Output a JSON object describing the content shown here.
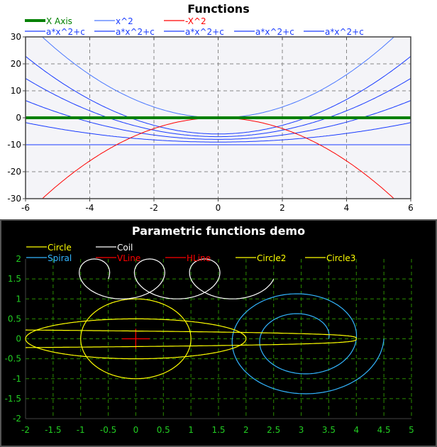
{
  "chart_data": [
    {
      "type": "line",
      "title": "Functions",
      "xlim": [
        -6,
        6
      ],
      "ylim": [
        -30,
        30
      ],
      "xticks": [
        -6,
        -4,
        -2,
        0,
        2,
        4,
        6
      ],
      "yticks": [
        -30,
        -20,
        -10,
        0,
        10,
        20,
        30
      ],
      "grid": true,
      "legend_position": "top",
      "series": [
        {
          "name": "X Axis",
          "kind": "quadratic",
          "a": 0,
          "c": 0,
          "color": "#008000",
          "width": 4
        },
        {
          "name": "x^2",
          "kind": "quadratic",
          "a": 1,
          "c": 0,
          "color": "#4a78ff",
          "width": 1
        },
        {
          "name": "-X^2",
          "kind": "quadratic",
          "a": -1,
          "c": 0,
          "color": "#ff0000",
          "width": 1
        },
        {
          "name": "a*x^2+c",
          "kind": "quadratic",
          "a": 0,
          "c": -10,
          "color": "#1a3cff",
          "width": 1
        },
        {
          "name": "a*x^2+c",
          "kind": "quadratic",
          "a": 0.2,
          "c": -9,
          "color": "#1a3cff",
          "width": 1
        },
        {
          "name": "a*x^2+c",
          "kind": "quadratic",
          "a": 0.4,
          "c": -8,
          "color": "#1a3cff",
          "width": 1
        },
        {
          "name": "a*x^2+c",
          "kind": "quadratic",
          "a": 0.6,
          "c": -7,
          "color": "#1a3cff",
          "width": 1
        },
        {
          "name": "a*x^2+c",
          "kind": "quadratic",
          "a": 0.8,
          "c": -6,
          "color": "#1a3cff",
          "width": 1
        }
      ]
    },
    {
      "type": "line",
      "title": "Parametric functions demo",
      "xlim": [
        -2,
        5
      ],
      "ylim": [
        -2,
        2
      ],
      "xticks": [
        "-2",
        "-1.5",
        "-1",
        "-0.5",
        "0",
        "0.5",
        "1",
        "1.5",
        "2",
        "2.5",
        "3",
        "3.5",
        "4",
        "4.5",
        "5"
      ],
      "yticks": [
        "-2",
        "-1.5",
        "-1",
        "-0.5",
        "0",
        "0.5",
        "1",
        "1.5",
        "2"
      ],
      "grid": true,
      "legend_position": "top",
      "series": [
        {
          "name": "Circle",
          "kind": "ellipse",
          "cx": 0,
          "cy": 0,
          "rx": 1,
          "ry": 1,
          "color": "#ffff00"
        },
        {
          "name": "Coil",
          "kind": "coil",
          "x0": -1,
          "y0": 1.5,
          "r": 0.5,
          "turns": 3,
          "advance": 1,
          "color": "#ffffff"
        },
        {
          "name": "Spiral",
          "kind": "spiral",
          "cx": 3,
          "cy": 0,
          "r0": 0.5,
          "r1": 1.5,
          "turns": 2,
          "color": "#33b5ff"
        },
        {
          "name": "VLine",
          "kind": "segment",
          "x1": 0,
          "y1": -0.25,
          "x2": 0,
          "y2": 0.25,
          "color": "#ff0000"
        },
        {
          "name": "HLine",
          "kind": "segment",
          "x1": -0.25,
          "y1": 0,
          "x2": 0.25,
          "y2": 0,
          "color": "#ff0000"
        },
        {
          "name": "Circle2",
          "kind": "ellipse",
          "cx": 0,
          "cy": 0,
          "rx": 2,
          "ry": 0.5,
          "color": "#ffff00"
        },
        {
          "name": "Circle3",
          "kind": "teardrop",
          "cx": 1,
          "rx": 3,
          "ry": 0.22,
          "color": "#ffff00"
        }
      ]
    }
  ]
}
